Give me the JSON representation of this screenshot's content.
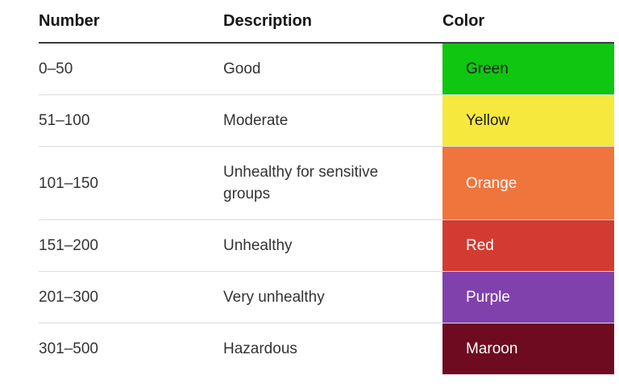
{
  "table": {
    "columns": [
      {
        "label": "Number"
      },
      {
        "label": "Description"
      },
      {
        "label": "Color"
      }
    ],
    "rows": [
      {
        "number": "0–50",
        "description": "Good",
        "color_name": "Green",
        "color_hex": "#0fc610",
        "text_color": "#1e1e1e"
      },
      {
        "number": "51–100",
        "description": "Moderate",
        "color_name": "Yellow",
        "color_hex": "#f7e83e",
        "text_color": "#1e1e1e"
      },
      {
        "number": "101–150",
        "description": "Unhealthy for sensitive groups",
        "color_name": "Orange",
        "color_hex": "#ef753d",
        "text_color": "#ffffff"
      },
      {
        "number": "151–200",
        "description": "Unhealthy",
        "color_name": "Red",
        "color_hex": "#d23b32",
        "text_color": "#ffffff"
      },
      {
        "number": "201–300",
        "description": "Very unhealthy",
        "color_name": "Purple",
        "color_hex": "#8041ac",
        "text_color": "#ffffff"
      },
      {
        "number": "301–500",
        "description": "Hazardous",
        "color_name": "Maroon",
        "color_hex": "#6e0b21",
        "text_color": "#ffffff"
      }
    ]
  }
}
